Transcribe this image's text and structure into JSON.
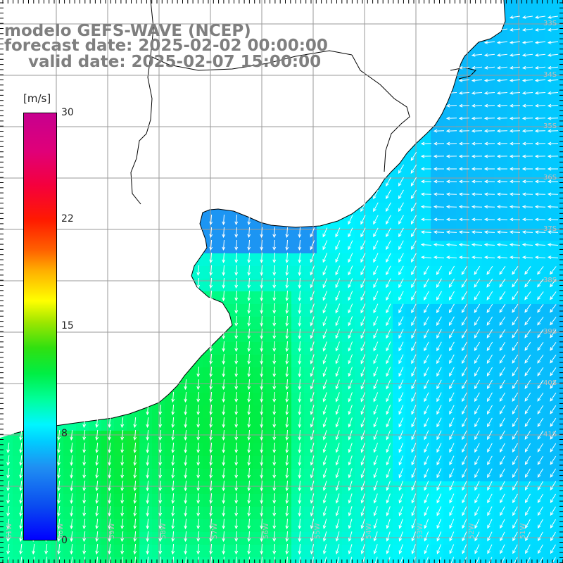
{
  "title": {
    "line1": "modelo GEFS-WAVE (NCEP)",
    "line2": "forecast date: 2025-02-02 00:00:00",
    "line3": "valid date: 2025-02-07 15:00:00"
  },
  "colorbar": {
    "unit": "[m/s]",
    "ticks": [
      "30",
      "22",
      "15",
      "8",
      "0"
    ],
    "min": 0,
    "max": 30,
    "colors": {
      "low": "#0000ff",
      "cyan": "#00ffff",
      "green": "#00ee44",
      "yellow": "#ffff00",
      "red": "#ff1a00",
      "high": "#c7008f"
    }
  },
  "map": {
    "land_color": "#ffffff",
    "coast_color": "#000000",
    "grid_color": "#a0a0a0",
    "arrow_color": "#ffffff",
    "lon_labels": [
      "61W",
      "60W",
      "59W",
      "58W",
      "57W",
      "56W",
      "55W",
      "54W",
      "53W",
      "52W",
      "51W"
    ],
    "lat_labels": [
      "33S",
      "34S",
      "35S",
      "36S",
      "37S",
      "38S",
      "39S",
      "40S",
      "41S"
    ]
  }
}
